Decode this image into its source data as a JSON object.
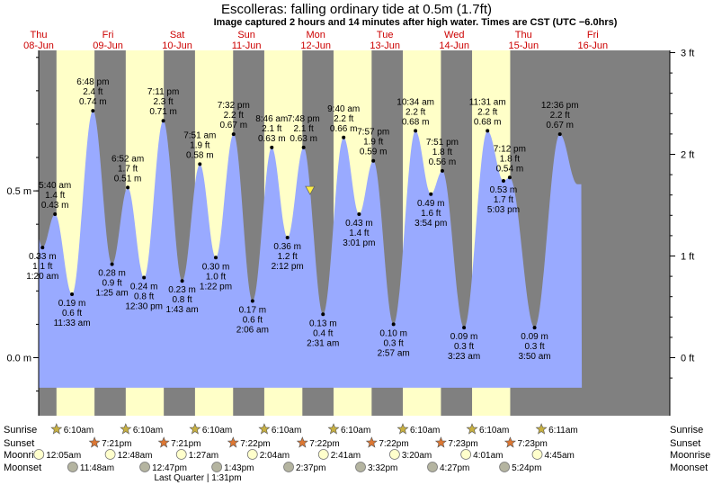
{
  "chart_data": {
    "type": "area",
    "title": "Escolleras: falling  ordinary tide at 0.5m (1.7ft)",
    "subtitle": "Image captured 2 hours and 14 minutes after high water. Times are CST (UTC −6.0hrs)",
    "y_left": {
      "unit": "m",
      "ticks": [
        {
          "label": "0.5 m",
          "value": 0.5
        },
        {
          "label": "0.0 m",
          "value": 0.0
        }
      ],
      "range": [
        -0.15,
        0.91
      ]
    },
    "y_right": {
      "unit": "ft",
      "ticks": [
        {
          "label": "3 ft",
          "value": 3
        },
        {
          "label": "2 ft",
          "value": 2
        },
        {
          "label": "1 ft",
          "value": 1
        },
        {
          "label": "0 ft",
          "value": 0
        }
      ]
    },
    "days": [
      {
        "dow": "Thu",
        "date": "08-Jun"
      },
      {
        "dow": "Fri",
        "date": "09-Jun"
      },
      {
        "dow": "Sat",
        "date": "10-Jun"
      },
      {
        "dow": "Sun",
        "date": "11-Jun"
      },
      {
        "dow": "Mon",
        "date": "12-Jun"
      },
      {
        "dow": "Tue",
        "date": "13-Jun"
      },
      {
        "dow": "Wed",
        "date": "14-Jun"
      },
      {
        "dow": "Thu",
        "date": "15-Jun"
      },
      {
        "dow": "Fri",
        "date": "16-Jun"
      }
    ],
    "tides": [
      {
        "type": "low",
        "day": 0,
        "time": "1:20 am",
        "m": "0.33 m",
        "ft": "1.1 ft",
        "h": 0.33,
        "t": 1.33
      },
      {
        "type": "high",
        "day": 0,
        "time": "5:40 am",
        "m": "0.43 m",
        "ft": "1.4 ft",
        "h": 0.43,
        "t": 5.67
      },
      {
        "type": "low",
        "day": 0,
        "time": "11:33 am",
        "m": "0.19 m",
        "ft": "0.6 ft",
        "h": 0.19,
        "t": 11.55
      },
      {
        "type": "high",
        "day": 0,
        "time": "6:48 pm",
        "m": "0.74 m",
        "ft": "2.4 ft",
        "h": 0.74,
        "t": 18.8
      },
      {
        "type": "low",
        "day": 1,
        "time": "1:25 am",
        "m": "0.28 m",
        "ft": "0.9 ft",
        "h": 0.28,
        "t": 25.42
      },
      {
        "type": "high",
        "day": 1,
        "time": "6:52 am",
        "m": "0.51 m",
        "ft": "1.7 ft",
        "h": 0.51,
        "t": 30.87
      },
      {
        "type": "low",
        "day": 1,
        "time": "12:30 pm",
        "m": "0.24 m",
        "ft": "0.8 ft",
        "h": 0.24,
        "t": 36.5
      },
      {
        "type": "high",
        "day": 1,
        "time": "7:11 pm",
        "m": "0.71 m",
        "ft": "2.3 ft",
        "h": 0.71,
        "t": 43.18
      },
      {
        "type": "low",
        "day": 2,
        "time": "1:43 am",
        "m": "0.23 m",
        "ft": "0.8 ft",
        "h": 0.23,
        "t": 49.72
      },
      {
        "type": "high",
        "day": 2,
        "time": "7:51 am",
        "m": "0.58 m",
        "ft": "1.9 ft",
        "h": 0.58,
        "t": 55.85
      },
      {
        "type": "low",
        "day": 2,
        "time": "1:22 pm",
        "m": "0.30 m",
        "ft": "1.0 ft",
        "h": 0.3,
        "t": 61.37
      },
      {
        "type": "high",
        "day": 2,
        "time": "7:32 pm",
        "m": "0.67 m",
        "ft": "2.2 ft",
        "h": 0.67,
        "t": 67.53
      },
      {
        "type": "low",
        "day": 3,
        "time": "2:06 am",
        "m": "0.17 m",
        "ft": "0.6 ft",
        "h": 0.17,
        "t": 74.1
      },
      {
        "type": "high",
        "day": 3,
        "time": "8:46 am",
        "m": "0.63 m",
        "ft": "2.1 ft",
        "h": 0.63,
        "t": 80.77
      },
      {
        "type": "low",
        "day": 3,
        "time": "2:12 pm",
        "m": "0.36 m",
        "ft": "1.2 ft",
        "h": 0.36,
        "t": 86.2
      },
      {
        "type": "high",
        "day": 3,
        "time": "7:48 pm",
        "m": "0.63 m",
        "ft": "2.1 ft",
        "h": 0.63,
        "t": 91.8
      },
      {
        "type": "low",
        "day": 4,
        "time": "2:31 am",
        "m": "0.13 m",
        "ft": "0.4 ft",
        "h": 0.13,
        "t": 98.52
      },
      {
        "type": "high",
        "day": 4,
        "time": "9:40 am",
        "m": "0.66 m",
        "ft": "2.2 ft",
        "h": 0.66,
        "t": 105.67
      },
      {
        "type": "low",
        "day": 4,
        "time": "3:01 pm",
        "m": "0.43 m",
        "ft": "1.4 ft",
        "h": 0.43,
        "t": 111.02
      },
      {
        "type": "high",
        "day": 4,
        "time": "7:57 pm",
        "m": "0.59 m",
        "ft": "1.9 ft",
        "h": 0.59,
        "t": 115.95
      },
      {
        "type": "low",
        "day": 5,
        "time": "2:57 am",
        "m": "0.10 m",
        "ft": "0.3 ft",
        "h": 0.1,
        "t": 122.95
      },
      {
        "type": "high",
        "day": 5,
        "time": "10:34 am",
        "m": "0.68 m",
        "ft": "2.2 ft",
        "h": 0.68,
        "t": 130.57
      },
      {
        "type": "low",
        "day": 5,
        "time": "3:54 pm",
        "m": "0.49 m",
        "ft": "1.6 ft",
        "h": 0.49,
        "t": 135.9
      },
      {
        "type": "high",
        "day": 5,
        "time": "7:51 pm",
        "m": "0.56 m",
        "ft": "1.8 ft",
        "h": 0.56,
        "t": 139.85
      },
      {
        "type": "low",
        "day": 6,
        "time": "3:23 am",
        "m": "0.09 m",
        "ft": "0.3 ft",
        "h": 0.09,
        "t": 147.38
      },
      {
        "type": "high",
        "day": 6,
        "time": "11:31 am",
        "m": "0.68 m",
        "ft": "2.2 ft",
        "h": 0.68,
        "t": 155.52
      },
      {
        "type": "low",
        "day": 6,
        "time": "5:03 pm",
        "m": "0.53 m",
        "ft": "1.7 ft",
        "h": 0.53,
        "t": 161.05
      },
      {
        "type": "high",
        "day": 6,
        "time": "7:12 pm",
        "m": "0.54 m",
        "ft": "1.8 ft",
        "h": 0.54,
        "t": 163.2
      },
      {
        "type": "low",
        "day": 7,
        "time": "3:50 am",
        "m": "0.09 m",
        "ft": "0.3 ft",
        "h": 0.09,
        "t": 171.83
      },
      {
        "type": "high",
        "day": 7,
        "time": "12:36 pm",
        "m": "0.67 m",
        "ft": "2.2 ft",
        "h": 0.67,
        "t": 180.6
      }
    ],
    "current": {
      "h": 0.5,
      "t": 94.03
    },
    "daylight": [
      {
        "rise": 6.17,
        "set": 19.35
      },
      {
        "rise": 30.17,
        "set": 43.35
      },
      {
        "rise": 54.17,
        "set": 67.37
      },
      {
        "rise": 78.17,
        "set": 91.37
      },
      {
        "rise": 102.17,
        "set": 115.37
      },
      {
        "rise": 126.17,
        "set": 139.38
      },
      {
        "rise": 150.17,
        "set": 163.38
      }
    ],
    "rows": {
      "sunrise": {
        "label": "Sunrise",
        "events": [
          {
            "time": "6:10am",
            "t": 6.17
          },
          {
            "time": "6:10am",
            "t": 30.17
          },
          {
            "time": "6:10am",
            "t": 54.17
          },
          {
            "time": "6:10am",
            "t": 78.17
          },
          {
            "time": "6:10am",
            "t": 102.17
          },
          {
            "time": "6:10am",
            "t": 126.17
          },
          {
            "time": "6:10am",
            "t": 150.17
          },
          {
            "time": "6:11am",
            "t": 174.18
          }
        ]
      },
      "sunset": {
        "label": "Sunset",
        "events": [
          {
            "time": "7:21pm",
            "t": 19.35
          },
          {
            "time": "7:21pm",
            "t": 43.35
          },
          {
            "time": "7:22pm",
            "t": 67.37
          },
          {
            "time": "7:22pm",
            "t": 91.37
          },
          {
            "time": "7:22pm",
            "t": 115.37
          },
          {
            "time": "7:23pm",
            "t": 139.38
          },
          {
            "time": "7:23pm",
            "t": 163.38
          }
        ]
      },
      "moonrise": {
        "label": "Moonrise",
        "events": [
          {
            "time": "12:05am",
            "t": 0.08
          },
          {
            "time": "12:48am",
            "t": 24.8
          },
          {
            "time": "1:27am",
            "t": 49.45
          },
          {
            "time": "2:04am",
            "t": 74.07
          },
          {
            "time": "2:41am",
            "t": 98.68
          },
          {
            "time": "3:20am",
            "t": 123.33
          },
          {
            "time": "4:01am",
            "t": 148.02
          },
          {
            "time": "4:45am",
            "t": 172.75
          }
        ]
      },
      "moonset": {
        "label": "Moonset",
        "events": [
          {
            "time": "11:48am",
            "t": 11.8
          },
          {
            "time": "12:47pm",
            "t": 36.78
          },
          {
            "time": "1:43pm",
            "t": 61.72
          },
          {
            "time": "2:37pm",
            "t": 86.62
          },
          {
            "time": "3:32pm",
            "t": 111.53
          },
          {
            "time": "4:27pm",
            "t": 136.45
          },
          {
            "time": "5:24pm",
            "t": 161.4
          }
        ]
      }
    },
    "phase_note": "Last Quarter | 1:31pm",
    "colors": {
      "night": "#808080",
      "day": "#ffffc8",
      "water": "#99aaff",
      "sunrise": "#c8b040",
      "sunset": "#dd7733",
      "moonrise": "#ffffcc",
      "moonset": "#b4b4a0",
      "marker": "#ffee44",
      "day_text": "#cc0000"
    }
  }
}
